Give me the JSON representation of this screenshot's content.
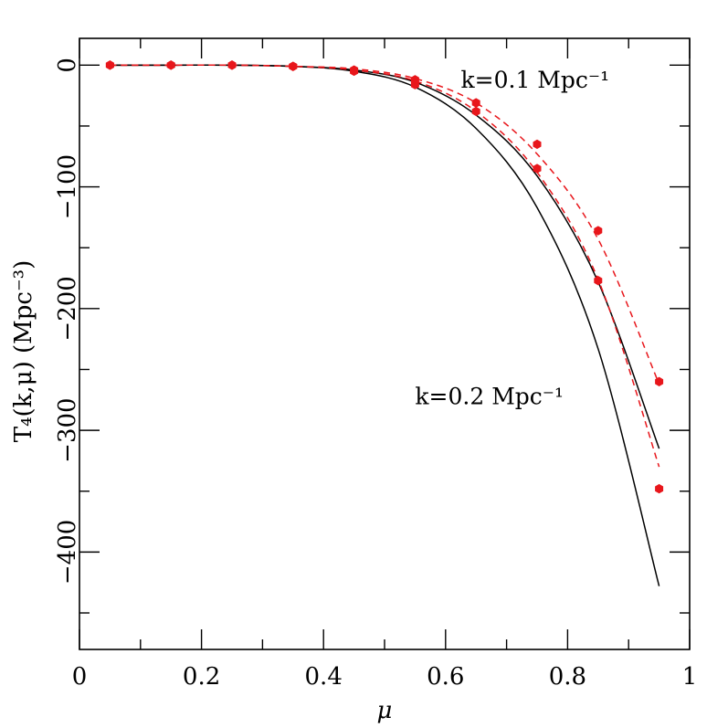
{
  "chart_data": {
    "type": "line",
    "xlabel": "μ",
    "ylabel": "T₄(k,μ)  (Mpc⁻³)",
    "xlim": [
      0,
      1
    ],
    "ylim": [
      -480,
      22
    ],
    "x_major_ticks": [
      0,
      0.2,
      0.4,
      0.6,
      0.8,
      1
    ],
    "x_tick_labels": [
      "0",
      "0.2",
      "0.4",
      "0.6",
      "0.8",
      "1"
    ],
    "y_major_ticks": [
      0,
      -100,
      -200,
      -300,
      -400
    ],
    "y_tick_labels": [
      "0",
      "−100",
      "−200",
      "−300",
      "−400"
    ],
    "grid": false,
    "annotations": [
      {
        "text": "k=0.1 Mpc⁻¹",
        "x": 0.625,
        "y": -12
      },
      {
        "text": "k=0.2 Mpc⁻¹",
        "x": 0.55,
        "y": -272
      }
    ],
    "series": [
      {
        "style": "solid",
        "color": "#000000",
        "x": [
          0.05,
          0.15,
          0.25,
          0.35,
          0.45,
          0.55,
          0.65,
          0.75,
          0.85,
          0.95
        ],
        "y": [
          0,
          0,
          0,
          -1,
          -4,
          -14,
          -41,
          -91,
          -178,
          -315
        ]
      },
      {
        "style": "solid",
        "color": "#000000",
        "x": [
          0.05,
          0.15,
          0.25,
          0.35,
          0.45,
          0.55,
          0.65,
          0.75,
          0.85,
          0.95
        ],
        "y": [
          0,
          0,
          0,
          -1,
          -5,
          -18,
          -52,
          -117,
          -233,
          -428
        ]
      },
      {
        "style": "dashed",
        "color": "#e8161b",
        "x": [
          0.05,
          0.15,
          0.25,
          0.35,
          0.45,
          0.55,
          0.65,
          0.75,
          0.85,
          0.95
        ],
        "y": [
          0,
          0,
          0,
          -1,
          -3,
          -11,
          -31,
          -73,
          -143,
          -262
        ]
      },
      {
        "style": "dashed",
        "color": "#e8161b",
        "x": [
          0.05,
          0.15,
          0.25,
          0.35,
          0.45,
          0.55,
          0.65,
          0.75,
          0.85,
          0.95
        ],
        "y": [
          0,
          0,
          0,
          -1,
          -4,
          -13,
          -38,
          -88,
          -176,
          -330
        ]
      },
      {
        "style": "markers",
        "color": "#e8161b",
        "x": [
          0.05,
          0.15,
          0.25,
          0.35,
          0.45,
          0.55,
          0.65,
          0.75,
          0.85,
          0.95
        ],
        "y": [
          0,
          0,
          0,
          -1,
          -4,
          -12,
          -31,
          -65,
          -136,
          -260
        ]
      },
      {
        "style": "markers",
        "color": "#e8161b",
        "x": [
          0.05,
          0.15,
          0.25,
          0.35,
          0.45,
          0.55,
          0.65,
          0.75,
          0.85,
          0.95
        ],
        "y": [
          0,
          0,
          0,
          -1,
          -5,
          -16,
          -38,
          -85,
          -177,
          -348
        ]
      }
    ]
  }
}
